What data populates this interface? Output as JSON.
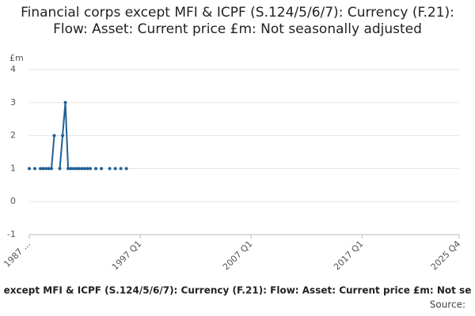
{
  "chart_data": {
    "type": "line",
    "title": "Financial corps except MFI & ICPF (S.124/5/6/7): Currency (F.21): Flow: Asset: Current price £m: Not seasonally adjusted",
    "y_unit": "£m",
    "footer": "except MFI & ICPF (S.124/5/6/7): Currency (F.21): Flow: Asset: Current price £m: Not se",
    "source": "Source:",
    "color": "#206095",
    "grid": true,
    "ylim": [
      -1,
      4
    ],
    "yticks": [
      -1,
      0,
      1,
      2,
      3,
      4
    ],
    "categories": [
      "1987 ...",
      null,
      null,
      null,
      null,
      null,
      null,
      null,
      null,
      null,
      null,
      null,
      null,
      null,
      null,
      null,
      null,
      null,
      null,
      null,
      null,
      null,
      null,
      null,
      null,
      null,
      null,
      null,
      null,
      null,
      null,
      null,
      null,
      null,
      null,
      null,
      null,
      null,
      null,
      null,
      "1997 Q1",
      null,
      null,
      null,
      null,
      null,
      null,
      null,
      null,
      null,
      null,
      null,
      null,
      null,
      null,
      null,
      null,
      null,
      null,
      null,
      null,
      null,
      null,
      null,
      null,
      null,
      null,
      null,
      null,
      null,
      null,
      null,
      null,
      null,
      null,
      null,
      null,
      null,
      null,
      null,
      "2007 Q1",
      null,
      null,
      null,
      null,
      null,
      null,
      null,
      null,
      null,
      null,
      null,
      null,
      null,
      null,
      null,
      null,
      null,
      null,
      null,
      null,
      null,
      null,
      null,
      null,
      null,
      null,
      null,
      null,
      null,
      null,
      null,
      null,
      null,
      null,
      null,
      null,
      null,
      null,
      null,
      "2017 Q1",
      null,
      null,
      null,
      null,
      null,
      null,
      null,
      null,
      null,
      null,
      null,
      null,
      null,
      null,
      null,
      null,
      null,
      null,
      null,
      null,
      null,
      null,
      null,
      null,
      null,
      null,
      null,
      null,
      null,
      null,
      null,
      null,
      null,
      null,
      "2025 Q4"
    ],
    "values": [
      1,
      null,
      1,
      null,
      1,
      1,
      1,
      1,
      1,
      2,
      null,
      1,
      2,
      3,
      1,
      1,
      1,
      1,
      1,
      1,
      1,
      1,
      1,
      null,
      1,
      null,
      1,
      null,
      null,
      1,
      null,
      1,
      null,
      1,
      null,
      1,
      null,
      null,
      null,
      null,
      null,
      null,
      null,
      null,
      null,
      null,
      null,
      null,
      null,
      null,
      null,
      null,
      null,
      null,
      null,
      null,
      null,
      null,
      null,
      null,
      null,
      null,
      null,
      null,
      null,
      null,
      null,
      null,
      null,
      null,
      null,
      null,
      null,
      null,
      null,
      null,
      null,
      null,
      null,
      null,
      null,
      null,
      null,
      null,
      null,
      null,
      null,
      null,
      null,
      null,
      null,
      null,
      null,
      null,
      null,
      null,
      null,
      null,
      null,
      null,
      null,
      null,
      null,
      null,
      null,
      null,
      null,
      null,
      null,
      null,
      null,
      null,
      null,
      null,
      null,
      null,
      null,
      null,
      null,
      null,
      null,
      null,
      null,
      null,
      null,
      null,
      null,
      null,
      null,
      null,
      null,
      null,
      null,
      null,
      null,
      null,
      null,
      null,
      null,
      null,
      null,
      null,
      null,
      null,
      null,
      null,
      null,
      null,
      null,
      null,
      null,
      null,
      null,
      null,
      null,
      null
    ]
  }
}
